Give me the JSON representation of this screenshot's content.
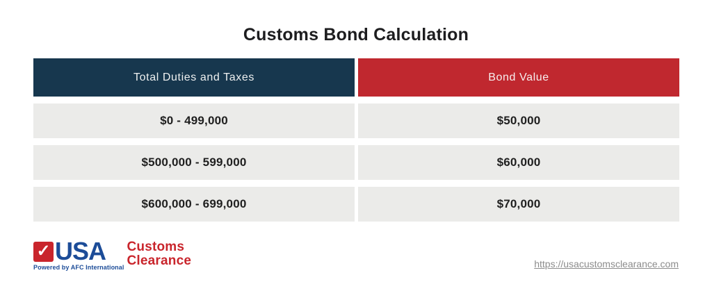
{
  "title": "Customs Bond Calculation",
  "table": {
    "headers": [
      "Total Duties and Taxes",
      "Bond Value"
    ],
    "rows": [
      {
        "duties": "$0 - 499,000",
        "bond": "$50,000"
      },
      {
        "duties": "$500,000 - 599,000",
        "bond": "$60,000"
      },
      {
        "duties": "$600,000 - 699,000",
        "bond": "$70,000"
      }
    ]
  },
  "chart_data": {
    "type": "table",
    "title": "Customs Bond Calculation",
    "columns": [
      "Total Duties and Taxes",
      "Bond Value"
    ],
    "rows": [
      [
        "$0 - 499,000",
        "$50,000"
      ],
      [
        "$500,000 - 599,000",
        "$60,000"
      ],
      [
        "$600,000 - 699,000",
        "$70,000"
      ]
    ]
  },
  "footer": {
    "logo": {
      "check_icon": "checkmark-icon",
      "check_glyph": "✓",
      "usa": "USA",
      "customs": "Customs",
      "clearance": "Clearance",
      "tagline": "Powered by AFC International"
    },
    "link": "https://usacustomsclearance.com"
  },
  "colors": {
    "header_navy": "#17374e",
    "header_red": "#c0282f",
    "row_bg": "#ebebe9",
    "logo_blue": "#1c4c98",
    "logo_red": "#c9252c",
    "link_gray": "#8c8c8c",
    "background": "#ffffff"
  }
}
